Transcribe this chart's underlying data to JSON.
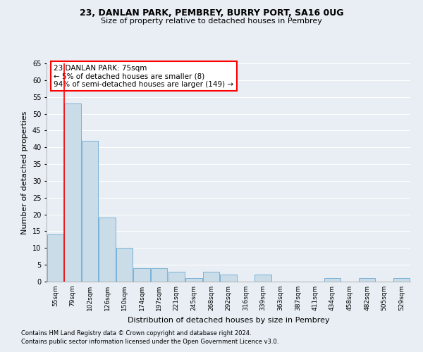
{
  "title1": "23, DANLAN PARK, PEMBREY, BURRY PORT, SA16 0UG",
  "title2": "Size of property relative to detached houses in Pembrey",
  "xlabel": "Distribution of detached houses by size in Pembrey",
  "ylabel": "Number of detached properties",
  "categories": [
    "55sqm",
    "79sqm",
    "102sqm",
    "126sqm",
    "150sqm",
    "174sqm",
    "197sqm",
    "221sqm",
    "245sqm",
    "268sqm",
    "292sqm",
    "316sqm",
    "339sqm",
    "363sqm",
    "387sqm",
    "411sqm",
    "434sqm",
    "458sqm",
    "482sqm",
    "505sqm",
    "529sqm"
  ],
  "values": [
    14,
    53,
    42,
    19,
    10,
    4,
    4,
    3,
    1,
    3,
    2,
    0,
    2,
    0,
    0,
    0,
    1,
    0,
    1,
    0,
    1
  ],
  "bar_color": "#c9dce8",
  "bar_edge_color": "#6aaad4",
  "annotation_text_line1": "23 DANLAN PARK: 75sqm",
  "annotation_text_line2": "← 5% of detached houses are smaller (8)",
  "annotation_text_line3": "94% of semi-detached houses are larger (149) →",
  "annotation_box_color": "white",
  "annotation_box_edge_color": "red",
  "ylim": [
    0,
    65
  ],
  "yticks": [
    0,
    5,
    10,
    15,
    20,
    25,
    30,
    35,
    40,
    45,
    50,
    55,
    60,
    65
  ],
  "footnote1": "Contains HM Land Registry data © Crown copyright and database right 2024.",
  "footnote2": "Contains public sector information licensed under the Open Government Licence v3.0.",
  "bg_color": "#e8eef4",
  "grid_color": "white"
}
